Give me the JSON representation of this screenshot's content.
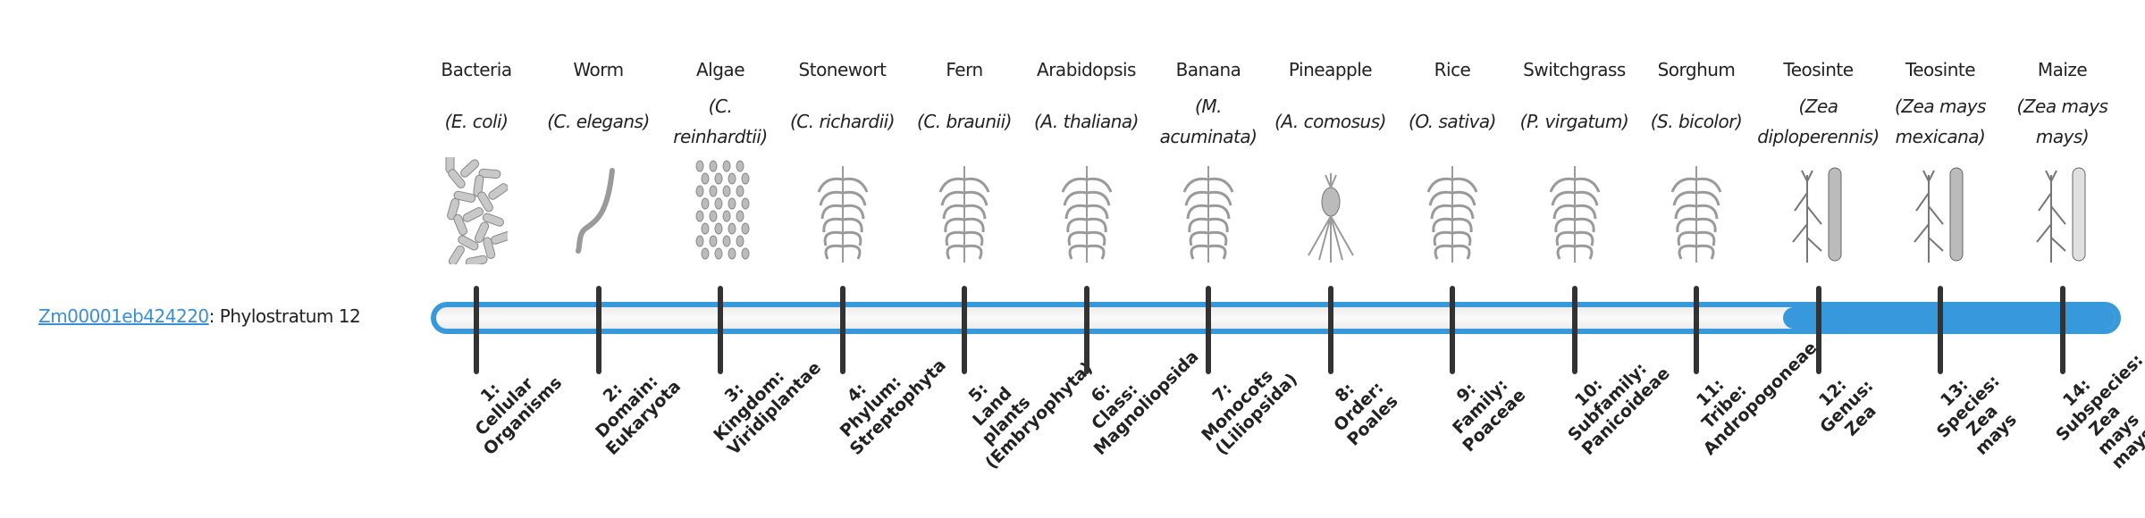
{
  "gene": {
    "id": "Zm00001eb424220",
    "suffix": ": Phylostratum 12"
  },
  "colors": {
    "accent": "#3799db",
    "tick": "#333333",
    "illustration": "#9a9a9a"
  },
  "progress": {
    "phylostratum": 12,
    "total": 14
  },
  "organisms": [
    {
      "common": "Bacteria",
      "sci_open": "(",
      "sci": "E. coli",
      "sci_close": ")",
      "icon": "bacteria-illustration"
    },
    {
      "common": "Worm",
      "sci_open": "(",
      "sci": "C. elegans",
      "sci_close": ")",
      "icon": "worm-illustration"
    },
    {
      "common": "Algae",
      "sci_open": "(",
      "sci": "C. reinhardtii",
      "sci_close": ")",
      "icon": "algae-illustration"
    },
    {
      "common": "Stonewort",
      "sci_open": "(",
      "sci": "C. richardii",
      "sci_close": ")",
      "icon": "stonewort-illustration"
    },
    {
      "common": "Fern",
      "sci_open": "(",
      "sci": "C. braunii",
      "sci_close": ")",
      "icon": "fern-illustration"
    },
    {
      "common": "Arabidopsis",
      "sci_open": "(",
      "sci": "A. thaliana",
      "sci_close": ")",
      "icon": "arabidopsis-illustration"
    },
    {
      "common": "Banana",
      "sci_open": "(",
      "sci": "M. acuminata",
      "sci_close": ")",
      "icon": "banana-illustration"
    },
    {
      "common": "Pineapple",
      "sci_open": "(",
      "sci": "A. comosus",
      "sci_close": ")",
      "icon": "pineapple-illustration"
    },
    {
      "common": "Rice",
      "sci_open": "(",
      "sci": "O. sativa",
      "sci_close": ")",
      "icon": "rice-illustration"
    },
    {
      "common": "Switchgrass",
      "sci_open": "(",
      "sci": "P. virgatum",
      "sci_close": ")",
      "icon": "switchgrass-illustration"
    },
    {
      "common": "Sorghum",
      "sci_open": "(",
      "sci": "S. bicolor",
      "sci_close": ")",
      "icon": "sorghum-illustration"
    },
    {
      "common": "Teosinte",
      "sci_open": "(",
      "sci": "Zea diploperennis",
      "sci_close": ")",
      "icon": "teosinte-illustration"
    },
    {
      "common": "Teosinte",
      "sci_open": "(",
      "sci": "Zea mays mexicana",
      "sci_close": ")",
      "icon": "teosinte-illustration"
    },
    {
      "common": "Maize",
      "sci_open": "(",
      "sci": "Zea mays mays",
      "sci_close": ")",
      "icon": "maize-illustration"
    }
  ],
  "strata": [
    {
      "num": "1:",
      "rank": "Cellular",
      "name": "Organisms"
    },
    {
      "num": "2:",
      "rank": "Domain:",
      "name": "Eukaryota"
    },
    {
      "num": "3:",
      "rank": "Kingdom:",
      "name": "Viridiplantae"
    },
    {
      "num": "4:",
      "rank": "Phylum:",
      "name": "Streptophyta"
    },
    {
      "num": "5:",
      "rank": "Land plants",
      "name": "(Embryophyta)"
    },
    {
      "num": "6:",
      "rank": "Class:",
      "name": "Magnoliopsida"
    },
    {
      "num": "7:",
      "rank": "Monocots",
      "name": "(Liliopsida)"
    },
    {
      "num": "8:",
      "rank": "Order:",
      "name": "Poales"
    },
    {
      "num": "9:",
      "rank": "Family:",
      "name": "Poaceae"
    },
    {
      "num": "10:",
      "rank": "Subfamily:",
      "name": "Panicoideae"
    },
    {
      "num": "11:",
      "rank": "Tribe:",
      "name": "Andropogoneae"
    },
    {
      "num": "12:",
      "rank": "Genus:",
      "name": "Zea"
    },
    {
      "num": "13:",
      "rank": "Species:",
      "name": "Zea mays"
    },
    {
      "num": "14:",
      "rank": "Subspecies:",
      "name": "Zea mays mays"
    }
  ]
}
